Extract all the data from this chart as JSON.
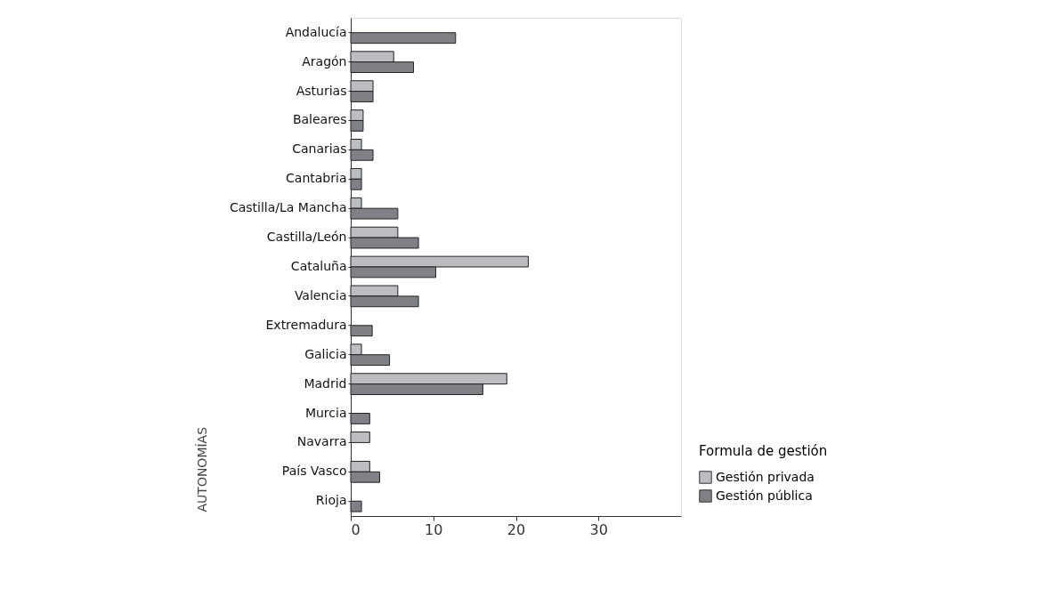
{
  "chart_data": {
    "type": "bar",
    "orientation": "horizontal",
    "ylabel": "AUTONOMÍAS",
    "legend_title": "Formula de gestión",
    "legend": "bottom right",
    "grid": false,
    "categories": [
      "Andalucía",
      "Aragón",
      "Asturias",
      "Baleares",
      "Canarias",
      "Cantabria",
      "Castilla/La Mancha",
      "Castilla/León",
      "Cataluña",
      "Valencia",
      "Extremadura",
      "Galicia",
      "Madrid",
      "Murcia",
      "Navarra",
      "País Vasco",
      "Rioja"
    ],
    "series": [
      {
        "name": "Gestión privada",
        "color": "#bcbdc1",
        "values": [
          null,
          5.2,
          2.7,
          1.5,
          1.3,
          1.3,
          1.3,
          5.7,
          21.5,
          5.7,
          null,
          1.3,
          18.9,
          null,
          2.3,
          2.3,
          null
        ]
      },
      {
        "name": "Gestión pública",
        "color": "#808186",
        "values": [
          12.7,
          7.6,
          2.7,
          1.5,
          2.7,
          1.3,
          5.7,
          8.2,
          10.3,
          8.2,
          2.6,
          4.7,
          16.0,
          2.3,
          null,
          3.5,
          1.3
        ]
      }
    ],
    "xlim": [
      0,
      40
    ],
    "xticks": [
      0,
      10,
      20,
      30
    ]
  }
}
